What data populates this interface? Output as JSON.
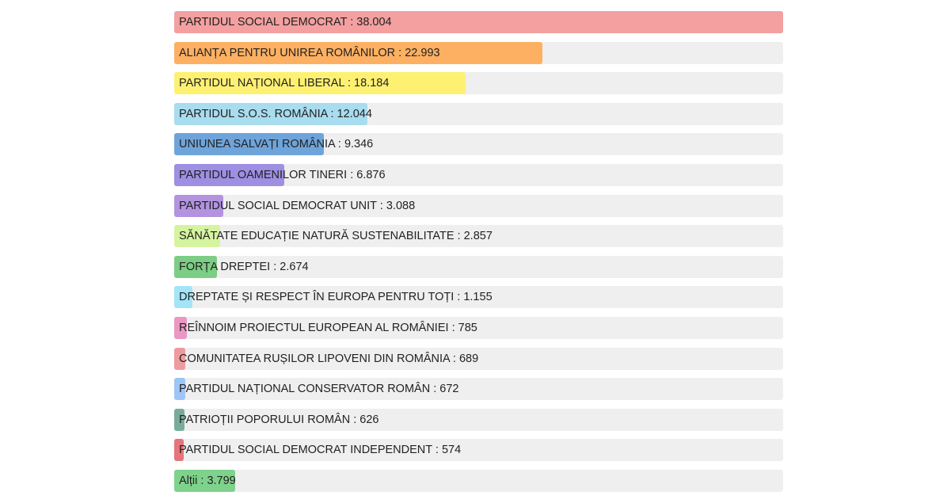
{
  "chart_data": {
    "type": "bar",
    "orientation": "horizontal",
    "categories": [
      "PARTIDUL SOCIAL DEMOCRAT",
      "ALIANȚA PENTRU UNIREA ROMÂNILOR",
      "PARTIDUL NAȚIONAL LIBERAL",
      "PARTIDUL S.O.S. ROMÂNIA",
      "UNIUNEA SALVAȚI ROMÂNIA",
      "PARTIDUL OAMENILOR TINERI",
      "PARTIDUL SOCIAL DEMOCRAT UNIT",
      "SĂNĂTATE EDUCAȚIE NATURĂ SUSTENABILITATE",
      "FORȚA DREPTEI",
      "DREPTATE ȘI RESPECT ÎN EUROPA PENTRU TOȚI",
      "REÎNNOIM PROIECTUL EUROPEAN AL ROMÂNIEI",
      "COMUNITATEA RUȘILOR LIPOVENI DIN ROMÂNIA",
      "PARTIDUL NAȚIONAL CONSERVATOR ROMÂN",
      "PATRIOȚII POPORULUI ROMÂN",
      "PARTIDUL SOCIAL DEMOCRAT INDEPENDENT",
      "Alții"
    ],
    "values": [
      38004,
      22993,
      18184,
      12044,
      9346,
      6876,
      3088,
      2857,
      2674,
      1155,
      785,
      689,
      672,
      626,
      574,
      3799
    ],
    "value_labels": [
      "38.004",
      "22.993",
      "18.184",
      "12.044",
      "9.346",
      "6.876",
      "3.088",
      "2.857",
      "2.674",
      "1.155",
      "785",
      "689",
      "672",
      "626",
      "574",
      "3.799"
    ],
    "colors": [
      "#f4a0a0",
      "#fdb062",
      "#fef172",
      "#a8dcef",
      "#6ea4da",
      "#9e8fe3",
      "#b393e0",
      "#d6f4a0",
      "#7ccd85",
      "#a4e4f8",
      "#eb97c3",
      "#ee9ba0",
      "#9dc5f5",
      "#79ab9b",
      "#e5747b",
      "#7ed28b"
    ],
    "separator": " : ",
    "xlim": [
      0,
      38004
    ],
    "grid": false,
    "legend": "none"
  }
}
